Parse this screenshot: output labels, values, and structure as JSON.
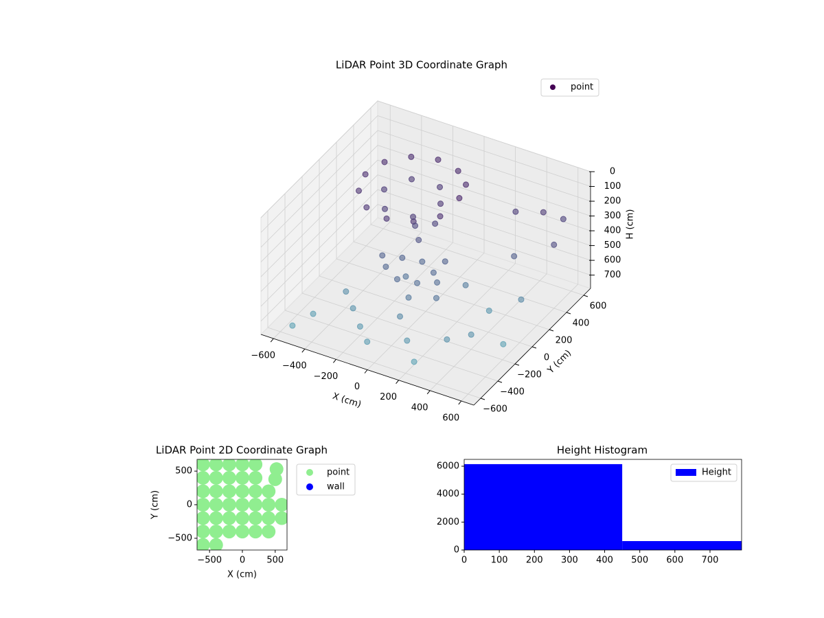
{
  "chart_data": [
    {
      "type": "scatter3d",
      "title": "LiDAR Point 3D Coordinate Graph",
      "xlabel": "X (cm)",
      "ylabel": "Y (cm)",
      "zlabel": "H (cm)",
      "xlim": [
        -680,
        680
      ],
      "ylim": [
        -680,
        680
      ],
      "zlim": [
        790,
        0
      ],
      "xticks": [
        {
          "value": -600,
          "label": "−600"
        },
        {
          "value": -400,
          "label": "−400"
        },
        {
          "value": -200,
          "label": "−200"
        },
        0,
        200,
        400,
        600
      ],
      "yticks": [
        {
          "value": -600,
          "label": "−600"
        },
        {
          "value": -400,
          "label": "−400"
        },
        {
          "value": -200,
          "label": "−200"
        },
        0,
        200,
        400,
        600
      ],
      "zticks": [
        0,
        100,
        200,
        300,
        400,
        500,
        600,
        700
      ],
      "color_scale": [
        "#440154",
        "#5fa7b8"
      ],
      "legend": "upper right",
      "series": [
        {
          "name": "point",
          "color": "#440154",
          "x": [
            50,
            10,
            -100,
            -250,
            -400,
            -510,
            -550,
            -510,
            -400,
            -250,
            -100,
            10,
            -70,
            -160,
            -340,
            -430,
            -340,
            -160,
            -200,
            -100,
            0,
            100,
            -150,
            -50,
            50,
            -100,
            0,
            150,
            -250,
            80,
            -150,
            -100,
            -50,
            300,
            450,
            550,
            600,
            400,
            200,
            500,
            -300,
            -500,
            100,
            300,
            -100,
            400,
            550,
            -400,
            200,
            0,
            -200,
            350,
            -550
          ],
          "y": [
            300,
            450,
            560,
            600,
            560,
            450,
            300,
            150,
            40,
            0,
            40,
            150,
            300,
            456,
            456,
            300,
            144,
            144,
            -100,
            -150,
            -100,
            -50,
            0,
            50,
            0,
            -50,
            -200,
            -150,
            -50,
            80,
            150,
            100,
            200,
            500,
            550,
            600,
            400,
            300,
            100,
            200,
            -300,
            -400,
            -400,
            -300,
            -500,
            -200,
            -100,
            -200,
            -500,
            -300,
            -400,
            100,
            -550
          ],
          "z": [
            180,
            190,
            200,
            200,
            210,
            220,
            230,
            240,
            250,
            250,
            240,
            230,
            260,
            270,
            280,
            290,
            300,
            290,
            500,
            520,
            540,
            530,
            480,
            500,
            510,
            560,
            580,
            560,
            470,
            470,
            350,
            400,
            330,
            300,
            280,
            320,
            360,
            450,
            600,
            650,
            700,
            750,
            720,
            700,
            740,
            690,
            760,
            680,
            770,
            650,
            730,
            720,
            760
          ]
        }
      ]
    },
    {
      "type": "scatter",
      "title": "LiDAR Point 2D Coordinate Graph",
      "xlabel": "X (cm)",
      "ylabel": "Y (cm)",
      "xlim": [
        -690,
        680
      ],
      "ylim": [
        -675,
        675
      ],
      "xticks": [
        {
          "value": -500,
          "label": "−500"
        },
        0,
        500
      ],
      "yticks": [
        {
          "value": -500,
          "label": "−500"
        },
        0,
        500
      ],
      "legend": "outside right",
      "series": [
        {
          "name": "point",
          "color": "#90ee90",
          "x": [
            -600,
            -400,
            -200,
            0,
            200,
            -600,
            -400,
            -200,
            0,
            200,
            -600,
            -400,
            -200,
            0,
            200,
            400,
            -600,
            -400,
            -200,
            0,
            200,
            400,
            600,
            -600,
            -400,
            -200,
            0,
            200,
            400,
            600,
            -600,
            -400,
            -200,
            0,
            200,
            400,
            -600,
            -400,
            520,
            500
          ],
          "y": [
            600,
            600,
            600,
            600,
            600,
            400,
            400,
            400,
            400,
            400,
            200,
            200,
            200,
            200,
            200,
            200,
            0,
            0,
            0,
            0,
            0,
            0,
            0,
            -200,
            -200,
            -200,
            -200,
            -200,
            -200,
            -200,
            -400,
            -400,
            -400,
            -400,
            -400,
            -400,
            -600,
            -600,
            530,
            380
          ]
        },
        {
          "name": "wall",
          "color": "#0000ff",
          "x": [],
          "y": []
        }
      ]
    },
    {
      "type": "histogram",
      "title": "Height Histogram",
      "name": "Height",
      "color": "#0000ff",
      "bins": [
        0,
        450,
        790
      ],
      "counts": [
        6150,
        640
      ],
      "xlim": [
        0,
        790
      ],
      "ylim": [
        0,
        6490
      ],
      "xticks": [
        0,
        100,
        200,
        300,
        400,
        500,
        600,
        700
      ],
      "yticks": [
        0,
        2000,
        4000,
        6000
      ],
      "legend": "upper right"
    }
  ]
}
